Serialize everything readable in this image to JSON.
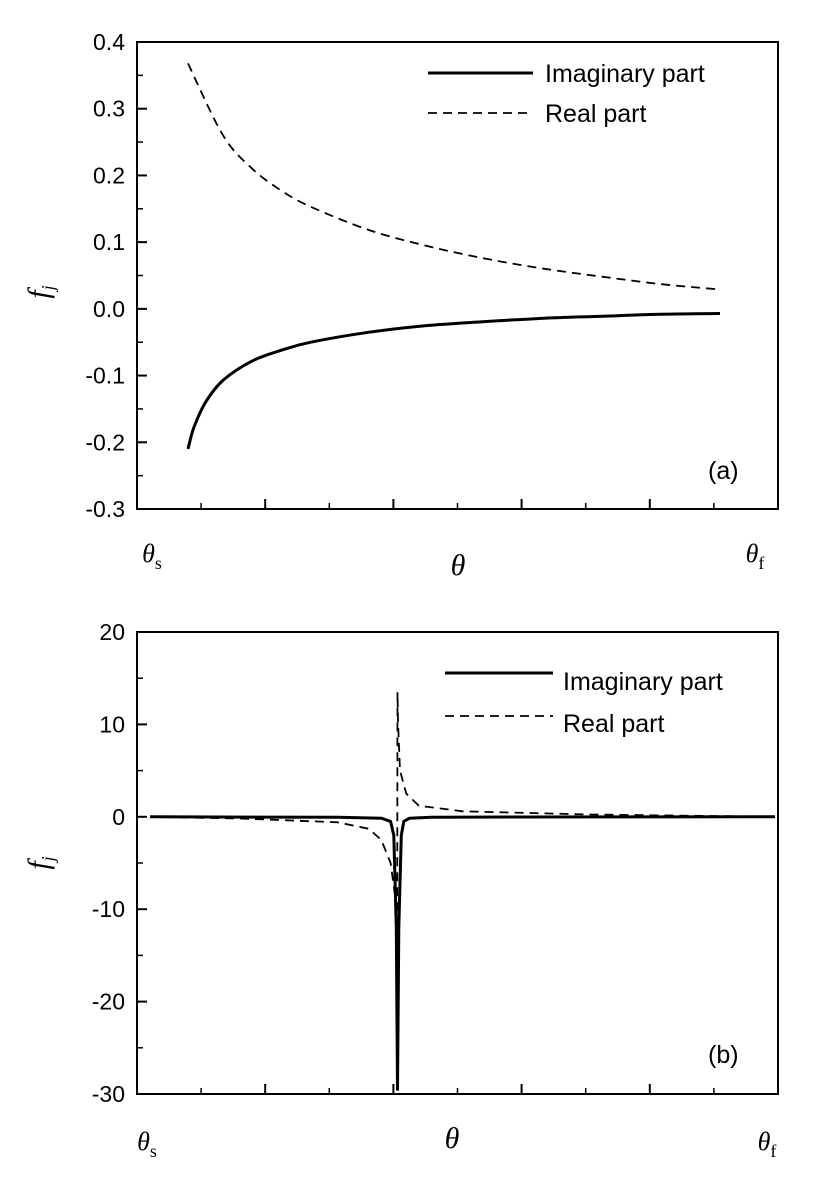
{
  "chart_data": [
    {
      "type": "line",
      "panel_label": "(a)",
      "xlabel": "θ",
      "ylabel": "f",
      "ylabel_sub": "j",
      "x_tick_labels": [
        {
          "base": "θ",
          "sub": "s"
        },
        {
          "base": "θ",
          "sub": "f"
        }
      ],
      "xlim": [
        0,
        1
      ],
      "ylim": [
        -0.3,
        0.4
      ],
      "y_ticks": [
        -0.3,
        -0.2,
        -0.1,
        0.0,
        0.1,
        0.2,
        0.3,
        0.4
      ],
      "y_tick_labels": [
        "-0.3",
        "-0.2",
        "-0.1",
        "0.0",
        "0.1",
        "0.2",
        "0.3",
        "0.4"
      ],
      "grid": false,
      "legend_placement": "top-right",
      "series": [
        {
          "name": "Imaginary part",
          "style": "solid",
          "x": [
            0.09,
            0.1,
            0.12,
            0.15,
            0.2,
            0.25,
            0.3,
            0.4,
            0.5,
            0.6,
            0.7,
            0.8,
            0.9,
            1.0
          ],
          "y": [
            -0.21,
            -0.178,
            -0.14,
            -0.107,
            -0.078,
            -0.062,
            -0.05,
            -0.035,
            -0.025,
            -0.019,
            -0.014,
            -0.011,
            -0.008,
            -0.007
          ]
        },
        {
          "name": "Real part",
          "style": "dashed",
          "x": [
            0.09,
            0.15,
            0.2,
            0.25,
            0.3,
            0.4,
            0.5,
            0.6,
            0.7,
            0.8,
            0.9,
            1.0
          ],
          "y": [
            0.368,
            0.26,
            0.21,
            0.177,
            0.153,
            0.118,
            0.094,
            0.075,
            0.06,
            0.048,
            0.037,
            0.029
          ]
        }
      ]
    },
    {
      "type": "line",
      "panel_label": "(b)",
      "xlabel": "θ",
      "ylabel": "f",
      "ylabel_sub": "j",
      "x_tick_labels": [
        {
          "base": "θ",
          "sub": "s"
        },
        {
          "base": "θ",
          "sub": "f"
        }
      ],
      "xlim": [
        0,
        1
      ],
      "ylim": [
        -30,
        20
      ],
      "y_ticks": [
        -30,
        -20,
        -10,
        0,
        10,
        20
      ],
      "y_tick_labels": [
        "-30",
        "-20",
        "-10",
        "0",
        "10",
        "20"
      ],
      "grid": false,
      "legend_placement": "top-right",
      "series": [
        {
          "name": "Imaginary part",
          "style": "solid",
          "x": [
            0.0,
            0.3,
            0.37,
            0.385,
            0.39,
            0.394,
            0.396,
            0.398,
            0.402,
            0.406,
            0.415,
            0.45,
            0.6,
            1.0
          ],
          "y": [
            0,
            -0.05,
            -0.15,
            -0.5,
            -2,
            -12,
            -29.5,
            -12,
            -2,
            -0.5,
            -0.15,
            -0.05,
            -0.02,
            0
          ]
        },
        {
          "name": "Real part",
          "style": "dashed",
          "x": [
            0.0,
            0.15,
            0.3,
            0.35,
            0.37,
            0.385,
            0.392,
            0.3955,
            0.396,
            0.397,
            0.4,
            0.41,
            0.43,
            0.5,
            0.7,
            1.0
          ],
          "y": [
            0,
            -0.2,
            -0.6,
            -1.3,
            -2.5,
            -5,
            -8.5,
            -10.5,
            13.5,
            10,
            5,
            2.5,
            1.2,
            0.6,
            0.25,
            0
          ]
        }
      ]
    }
  ]
}
